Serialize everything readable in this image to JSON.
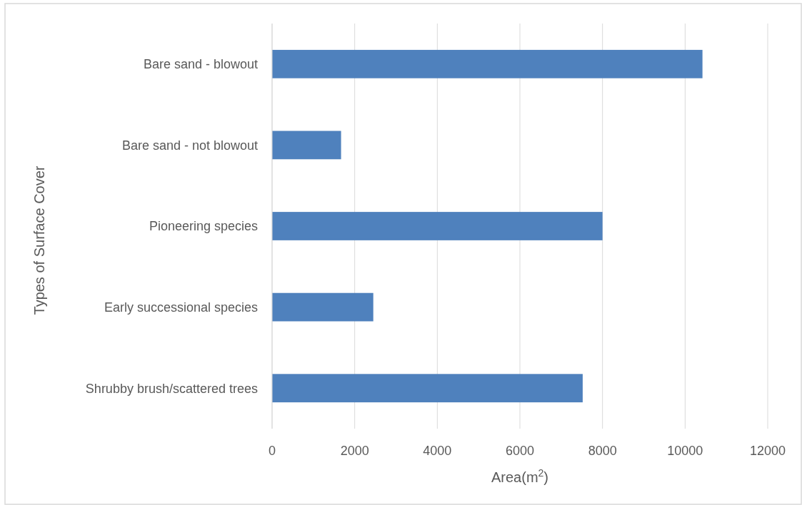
{
  "chart_data": {
    "type": "bar",
    "orientation": "horizontal",
    "categories": [
      "Bare sand - blowout",
      "Bare sand - not blowout",
      "Pioneering species",
      "Early successional species",
      "Shrubby brush/scattered trees"
    ],
    "values": [
      10420,
      1670,
      8000,
      2450,
      7520
    ],
    "color": "#4f81bd",
    "xlim": [
      0,
      12000
    ],
    "xticks": [
      0,
      2000,
      4000,
      6000,
      8000,
      10000,
      12000
    ],
    "grid": "x",
    "xlabel": "Area(m$^{2}$)",
    "ylabel": "Types of Surface Cover"
  }
}
